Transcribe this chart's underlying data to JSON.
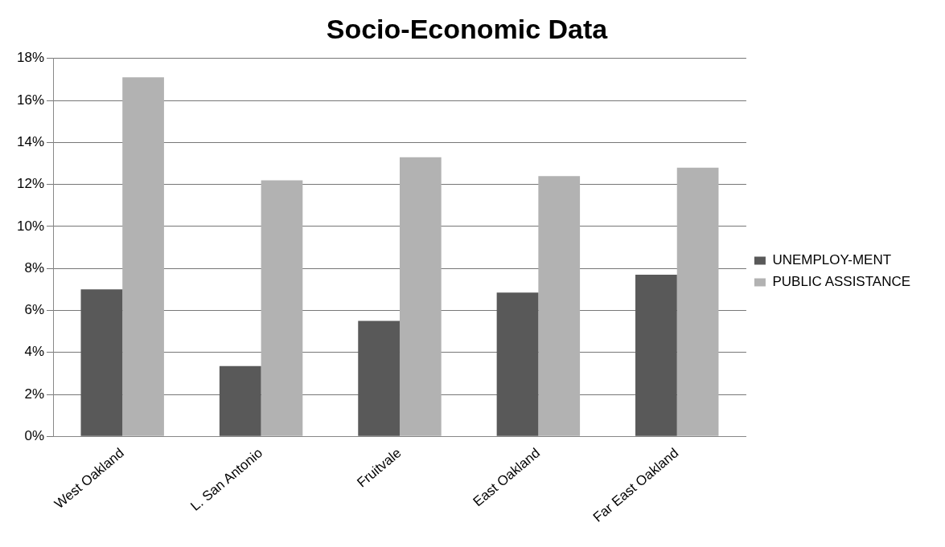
{
  "chart_data": {
    "type": "bar",
    "title": "Socio-Economic Data",
    "categories": [
      "West Oakland",
      "L. San Antonio",
      "Fruitvale",
      "East Oakland",
      "Far East Oakland"
    ],
    "series": [
      {
        "name": "UNEMPLOY-MENT",
        "color": "#595959",
        "values": [
          7.0,
          3.35,
          5.5,
          6.85,
          7.7
        ]
      },
      {
        "name": "PUBLIC ASSISTANCE",
        "color": "#b2b2b2",
        "values": [
          17.1,
          12.2,
          13.3,
          12.4,
          12.8
        ]
      }
    ],
    "ylim": [
      0,
      18
    ],
    "yticks": [
      {
        "value": 0,
        "label": "0%"
      },
      {
        "value": 2,
        "label": "2%"
      },
      {
        "value": 4,
        "label": "4%"
      },
      {
        "value": 6,
        "label": "6%"
      },
      {
        "value": 8,
        "label": "8%"
      },
      {
        "value": 10,
        "label": "10%"
      },
      {
        "value": 12,
        "label": "12%"
      },
      {
        "value": 14,
        "label": "14%"
      },
      {
        "value": 16,
        "label": "16%"
      },
      {
        "value": 18,
        "label": "18%"
      }
    ],
    "grid": "y",
    "legend": "right"
  }
}
